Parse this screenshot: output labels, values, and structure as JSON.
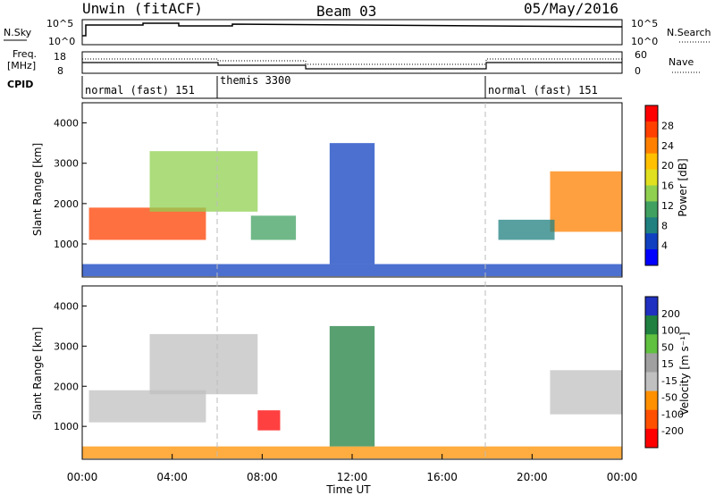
{
  "header": {
    "site": "Unwin (fitACF)",
    "beam": "Beam 03",
    "date": "05/May/2016"
  },
  "top_panels": {
    "nsky_label": "N.Sky",
    "nsky_ticks": [
      "10^5",
      "10^0"
    ],
    "nsearch_label": "N.Search",
    "nsearch_ticks": [
      "10^5",
      "10^0"
    ],
    "freq_label": "Freq.",
    "freq_unit": "[MHz]",
    "freq_ticks": [
      "18",
      "8"
    ],
    "nave_label": "Nave",
    "nave_ticks": [
      "60",
      "0"
    ],
    "cpid_label": "CPID",
    "cpid_segments": [
      {
        "name": "normal (fast) 151",
        "start_hr": 0,
        "end_hr": 6
      },
      {
        "name": "themis 3300",
        "start_hr": 6,
        "end_hr": 18
      },
      {
        "name": "normal (fast) 151",
        "start_hr": 18,
        "end_hr": 24
      }
    ]
  },
  "panel1": {
    "ylabel": "Slant Range [km]",
    "yticks": [
      "4000",
      "3000",
      "2000",
      "1000"
    ],
    "colorbar_label": "Power [dB]",
    "colorbar_ticks": [
      "28",
      "24",
      "20",
      "16",
      "12",
      "8",
      "4"
    ],
    "colors": [
      "#ff0000",
      "#ff4000",
      "#ff8000",
      "#ffc000",
      "#e0e020",
      "#90d050",
      "#40a060",
      "#208080",
      "#1040c0",
      "#0000ff"
    ]
  },
  "panel2": {
    "ylabel": "Slant Range [km]",
    "yticks": [
      "4000",
      "3000",
      "2000",
      "1000"
    ],
    "colorbar_label": "Velocity [m s⁻¹]",
    "colorbar_ticks": [
      "200",
      "100",
      "50",
      "15",
      "-15",
      "-50",
      "-100",
      "-200"
    ],
    "colors": [
      "#2030c0",
      "#208040",
      "#60c040",
      "#a0a0a0",
      "#c0c0c0",
      "#ff9000",
      "#ff5000",
      "#ff0000"
    ]
  },
  "xaxis": {
    "label": "Time UT",
    "ticks": [
      "00:00",
      "04:00",
      "08:00",
      "12:00",
      "16:00",
      "20:00",
      "00:00"
    ]
  },
  "chart_data": [
    {
      "type": "heatmap",
      "title": "Power [dB]",
      "xlabel": "Time UT",
      "ylabel": "Slant Range [km]",
      "xlim": [
        0,
        24
      ],
      "ylim": [
        180,
        4500
      ],
      "clim": [
        0,
        30
      ],
      "regions": [
        {
          "t0": 0.3,
          "t1": 5.5,
          "r0": 1100,
          "r1": 1900,
          "value": 26
        },
        {
          "t0": 3.0,
          "t1": 7.8,
          "r0": 1800,
          "r1": 3300,
          "value": 14
        },
        {
          "t0": 7.5,
          "t1": 9.5,
          "r0": 1100,
          "r1": 1700,
          "value": 10
        },
        {
          "t0": 20.8,
          "t1": 24,
          "r0": 1300,
          "r1": 2800,
          "value": 22
        },
        {
          "t0": 18.5,
          "t1": 21.0,
          "r0": 1100,
          "r1": 1600,
          "value": 6
        },
        {
          "t0": 0,
          "t1": 24,
          "r0": 200,
          "r1": 500,
          "value": 5
        },
        {
          "t0": 11.0,
          "t1": 13.0,
          "r0": 500,
          "r1": 3500,
          "value": 4
        }
      ]
    },
    {
      "type": "heatmap",
      "title": "Velocity [m s-1]",
      "xlabel": "Time UT",
      "ylabel": "Slant Range [km]",
      "xlim": [
        0,
        24
      ],
      "ylim": [
        180,
        4500
      ],
      "clim": [
        -200,
        200
      ],
      "regions": [
        {
          "t0": 0.3,
          "t1": 5.5,
          "r0": 1100,
          "r1": 1900,
          "value": 0
        },
        {
          "t0": 3.0,
          "t1": 7.8,
          "r0": 1800,
          "r1": 3300,
          "value": 0
        },
        {
          "t0": 7.8,
          "t1": 8.8,
          "r0": 900,
          "r1": 1400,
          "value": -200
        },
        {
          "t0": 20.8,
          "t1": 24,
          "r0": 1300,
          "r1": 2400,
          "value": 0
        },
        {
          "t0": 0,
          "t1": 24,
          "r0": 200,
          "r1": 500,
          "value": -60
        },
        {
          "t0": 11.0,
          "t1": 13.0,
          "r0": 500,
          "r1": 3500,
          "value": 120
        }
      ]
    }
  ]
}
